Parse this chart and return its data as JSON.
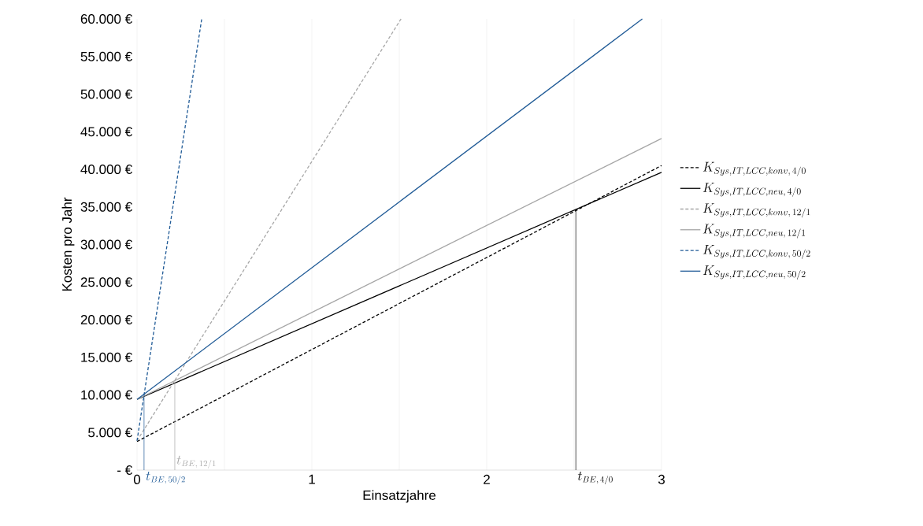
{
  "chart_data": {
    "type": "line",
    "xlabel": "Einsatzjahre",
    "ylabel": "Kosten pro Jahr",
    "xlim": [
      0,
      3
    ],
    "ylim": [
      0,
      60000
    ],
    "xticks": [
      0,
      {
        "value": 0.5,
        "label": null
      },
      1,
      {
        "value": 1.5,
        "label": null
      },
      2,
      {
        "value": 2.5,
        "label": null
      },
      3
    ],
    "yticks": [
      {
        "value": 0,
        "label": "-   €"
      },
      {
        "value": 5000,
        "label": "5.000 €"
      },
      {
        "value": 10000,
        "label": "10.000 €"
      },
      {
        "value": 15000,
        "label": "15.000 €"
      },
      {
        "value": 20000,
        "label": "20.000 €"
      },
      {
        "value": 25000,
        "label": "25.000 €"
      },
      {
        "value": 30000,
        "label": "30.000 €"
      },
      {
        "value": 35000,
        "label": "35.000 €"
      },
      {
        "value": 40000,
        "label": "40.000 €"
      },
      {
        "value": 45000,
        "label": "45.000 €"
      },
      {
        "value": 50000,
        "label": "50.000 €"
      },
      {
        "value": 55000,
        "label": "55.000 €"
      },
      {
        "value": 60000,
        "label": "60.000 €"
      }
    ],
    "grid": "x",
    "legend": "right",
    "marker": "none",
    "series": [
      {
        "name": "K_{Sys,IT,LCC,konv,\\,4/0}",
        "color": "#000000",
        "line_style": "dashed",
        "x": [
          0,
          3
        ],
        "values": [
          3800,
          40500
        ]
      },
      {
        "name": "K_{Sys,IT,LCC,neu,\\,4/0}",
        "color": "#000000",
        "line_style": "solid",
        "x": [
          0,
          3
        ],
        "values": [
          9400,
          39600
        ]
      },
      {
        "name": "K_{Sys,IT,LCC,konv,\\,12/1}",
        "color": "#a6a6a6",
        "line_style": "dashed",
        "x": [
          0,
          1.51
        ],
        "values": [
          3900,
          60000
        ]
      },
      {
        "name": "K_{Sys,IT,LCC,neu,\\,12/1}",
        "color": "#a6a6a6",
        "line_style": "solid",
        "x": [
          0,
          3
        ],
        "values": [
          9400,
          44100
        ]
      },
      {
        "name": "K_{Sys,IT,LCC,konv,\\,50/2}",
        "color": "#1f5a96",
        "line_style": "dashed",
        "x": [
          0,
          0.37
        ],
        "values": [
          3900,
          60000
        ]
      },
      {
        "name": "K_{Sys,IT,LCC,neu,\\,50/2}",
        "color": "#1f5a96",
        "line_style": "solid",
        "x": [
          0,
          2.89
        ],
        "values": [
          9400,
          60000
        ]
      },
      {
        "color": "#1f5a96",
        "line_style": "solid",
        "x": [
          0.04,
          0.04
        ],
        "values": [
          0,
          10000
        ]
      },
      {
        "color": "#a6a6a6",
        "line_style": "solid",
        "x": [
          0.216,
          0.216
        ],
        "values": [
          0,
          11900
        ]
      },
      {
        "color": "#000000",
        "line_style": "solid",
        "x": [
          2.51,
          2.51
        ],
        "values": [
          0,
          34700
        ]
      }
    ],
    "annotations": [
      {
        "text": "t_{BE,\\,50/2}",
        "x": 0.04,
        "y": 0
      },
      {
        "text": "t_{BE,\\,12/1}",
        "x": 0.216,
        "y": 0
      },
      {
        "text": "t_{BE,\\,4/0}",
        "x": 2.51,
        "y": 0
      }
    ]
  }
}
